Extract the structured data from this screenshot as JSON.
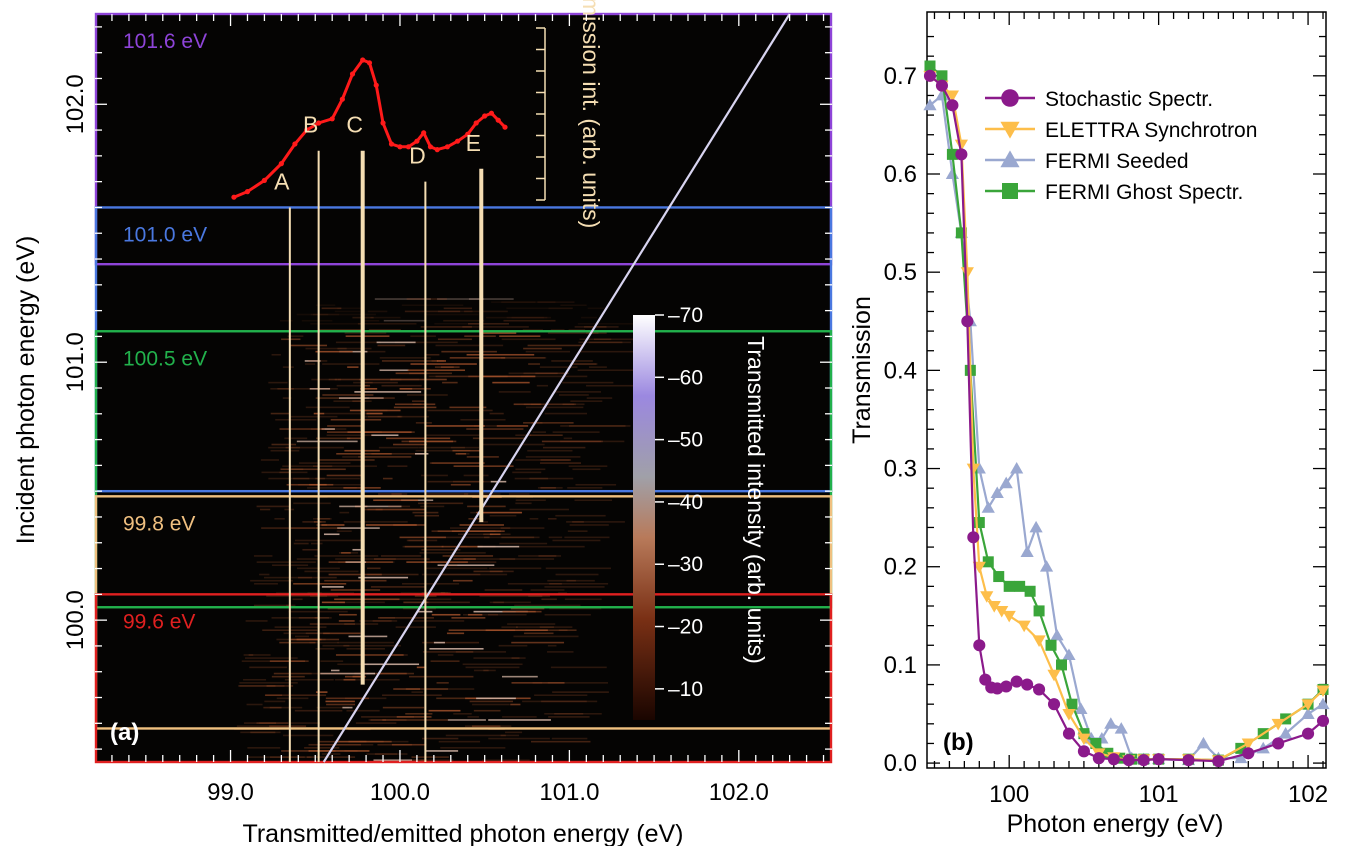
{
  "colors": {
    "purple": "#8e44d8",
    "blue": "#4a78e0",
    "green": "#22b14c",
    "orange": "#f0c080",
    "red": "#e02020",
    "emission_trace": "#ff1a1a",
    "peak_line": "#f5deb3",
    "stochastic": "#8b1a8b",
    "elettra": "#fdbe4a",
    "fermi_seeded": "#9aa8d0",
    "fermi_ghost": "#3aa53a"
  },
  "chart_data": [
    {
      "type": "heatmap",
      "panel_label": "(a)",
      "xlabel": "Transmitted/emitted photon energy (eV)",
      "ylabel": "Incident photon energy (eV)",
      "xlim": [
        98.2,
        102.55
      ],
      "ylim": [
        99.45,
        102.35
      ],
      "x_ticks": [
        99.0,
        100.0,
        101.0,
        102.0
      ],
      "x_tick_labels": [
        "99.0",
        "100.0",
        "101.0",
        "102.0"
      ],
      "y_ticks": [
        100.0,
        101.0,
        102.0
      ],
      "y_tick_labels": [
        "100.0",
        "101.0",
        "102.0"
      ],
      "colorbar": {
        "label": "Transmitted intensity (arb. units)",
        "range": [
          5,
          70
        ],
        "ticks": [
          10,
          20,
          30,
          40,
          50,
          60,
          70
        ],
        "tick_labels": [
          "10",
          "20",
          "30",
          "40",
          "50",
          "60",
          "70"
        ]
      },
      "diagonal_line": {
        "x": [
          99.55,
          102.3
        ],
        "y": [
          99.45,
          102.35
        ]
      },
      "emission_spectrum": {
        "label": "Emission int. (arb. units)",
        "x": [
          99.02,
          99.1,
          99.2,
          99.3,
          99.38,
          99.45,
          99.52,
          99.6,
          99.66,
          99.72,
          99.78,
          99.82,
          99.86,
          99.9,
          99.95,
          100.0,
          100.05,
          100.1,
          100.14,
          100.18,
          100.22,
          100.28,
          100.34,
          100.4,
          100.45,
          100.5,
          100.54,
          100.58,
          100.62
        ],
        "y": [
          0.02,
          0.06,
          0.14,
          0.26,
          0.4,
          0.5,
          0.55,
          0.58,
          0.72,
          0.9,
          1.0,
          0.98,
          0.82,
          0.55,
          0.4,
          0.38,
          0.38,
          0.42,
          0.48,
          0.38,
          0.36,
          0.38,
          0.42,
          0.47,
          0.55,
          0.6,
          0.62,
          0.57,
          0.52
        ]
      },
      "peaks": [
        {
          "label": "A",
          "x": 99.35,
          "y_top": 101.6
        },
        {
          "label": "B",
          "x": 99.52,
          "y_top": 101.82
        },
        {
          "label": "C",
          "x": 99.78,
          "y_top": 101.82,
          "y_bottom": 99.75
        },
        {
          "label": "D",
          "x": 100.15,
          "y_top": 101.7
        },
        {
          "label": "E",
          "x": 100.48,
          "y_top": 101.75,
          "y_bottom": 100.38
        }
      ],
      "energy_windows": [
        {
          "label": "101.6 eV",
          "color": "purple",
          "lower": 101.38
        },
        {
          "label": "101.0 eV",
          "color": "blue",
          "lower": 100.5
        },
        {
          "label": "100.5 eV",
          "color": "green",
          "lower": 100.05
        },
        {
          "label": "99.8 eV",
          "color": "orange",
          "lower": 99.58
        },
        {
          "label": "99.6 eV",
          "color": "red",
          "lower": 99.45
        }
      ],
      "window_edges": {
        "purple": 102.35,
        "blue": 101.6,
        "green": 101.12,
        "orange": 100.48,
        "red": 100.1
      }
    },
    {
      "type": "line",
      "panel_label": "(b)",
      "xlabel": "Photon energy (eV)",
      "ylabel": "Transmission",
      "xlim": [
        99.45,
        102.12
      ],
      "ylim": [
        -0.005,
        0.765
      ],
      "x_ticks": [
        100,
        101,
        102
      ],
      "x_tick_labels": [
        "100",
        "101",
        "102"
      ],
      "y_ticks": [
        0.0,
        0.1,
        0.2,
        0.3,
        0.4,
        0.5,
        0.6,
        0.7
      ],
      "y_tick_labels": [
        "0.0",
        "0.1",
        "0.2",
        "0.3",
        "0.4",
        "0.5",
        "0.6",
        "0.7"
      ],
      "legend_position": "top-right",
      "series": [
        {
          "name": "Stochastic Spectr.",
          "color": "stochastic",
          "marker": "circle",
          "x": [
            99.47,
            99.55,
            99.62,
            99.68,
            99.72,
            99.76,
            99.8,
            99.84,
            99.88,
            99.92,
            99.98,
            100.05,
            100.12,
            100.2,
            100.3,
            100.4,
            100.5,
            100.6,
            100.7,
            100.8,
            100.9,
            101.0,
            101.2,
            101.4,
            101.6,
            101.8,
            102.0,
            102.1
          ],
          "y": [
            0.7,
            0.69,
            0.67,
            0.62,
            0.45,
            0.23,
            0.12,
            0.085,
            0.077,
            0.076,
            0.078,
            0.083,
            0.08,
            0.075,
            0.06,
            0.03,
            0.012,
            0.005,
            0.004,
            0.003,
            0.003,
            0.004,
            0.003,
            0.002,
            0.01,
            0.02,
            0.03,
            0.043
          ]
        },
        {
          "name": "ELETTRA Synchrotron",
          "color": "elettra",
          "marker": "triangle-down",
          "x": [
            99.47,
            99.55,
            99.62,
            99.68,
            99.72,
            99.76,
            99.8,
            99.85,
            99.9,
            99.95,
            100.0,
            100.1,
            100.2,
            100.3,
            100.4,
            100.5,
            100.6,
            100.7,
            100.8,
            100.9,
            101.0,
            101.2,
            101.4,
            101.6,
            101.8,
            102.0,
            102.1
          ],
          "y": [
            0.7,
            0.69,
            0.68,
            0.63,
            0.5,
            0.3,
            0.2,
            0.17,
            0.16,
            0.155,
            0.15,
            0.14,
            0.125,
            0.09,
            0.05,
            0.025,
            0.01,
            0.006,
            0.003,
            0.004,
            0.004,
            0.004,
            0.003,
            0.02,
            0.04,
            0.06,
            0.074
          ]
        },
        {
          "name": "FERMI Seeded",
          "color": "fermi_seeded",
          "marker": "triangle-up",
          "x": [
            99.47,
            99.55,
            99.62,
            99.68,
            99.74,
            99.8,
            99.86,
            99.92,
            99.98,
            100.05,
            100.12,
            100.18,
            100.25,
            100.32,
            100.4,
            100.48,
            100.55,
            100.62,
            100.68,
            100.75,
            100.82,
            100.9,
            101.0,
            101.2,
            101.3,
            101.4,
            101.55,
            101.7,
            101.85,
            102.0,
            102.1
          ],
          "y": [
            0.67,
            0.68,
            0.6,
            0.54,
            0.45,
            0.3,
            0.26,
            0.275,
            0.285,
            0.3,
            0.215,
            0.24,
            0.2,
            0.13,
            0.11,
            0.055,
            0.025,
            0.025,
            0.04,
            0.035,
            0.005,
            0.004,
            0.004,
            0.003,
            0.02,
            0.005,
            0.005,
            0.015,
            0.03,
            0.05,
            0.06
          ]
        },
        {
          "name": "FERMI Ghost Spectr.",
          "color": "fermi_ghost",
          "marker": "square",
          "x": [
            99.47,
            99.55,
            99.62,
            99.68,
            99.74,
            99.8,
            99.86,
            99.93,
            100.0,
            100.07,
            100.14,
            100.2,
            100.28,
            100.35,
            100.42,
            100.5,
            100.58,
            100.66,
            100.74,
            100.82,
            100.9,
            101.0,
            101.2,
            101.4,
            101.55,
            101.7,
            101.85,
            102.0,
            102.1
          ],
          "y": [
            0.71,
            0.7,
            0.62,
            0.54,
            0.4,
            0.245,
            0.205,
            0.19,
            0.18,
            0.18,
            0.175,
            0.155,
            0.12,
            0.1,
            0.06,
            0.03,
            0.02,
            0.01,
            0.005,
            0.004,
            0.004,
            0.004,
            0.004,
            0.003,
            0.015,
            0.03,
            0.045,
            0.06,
            0.075
          ]
        }
      ]
    }
  ]
}
